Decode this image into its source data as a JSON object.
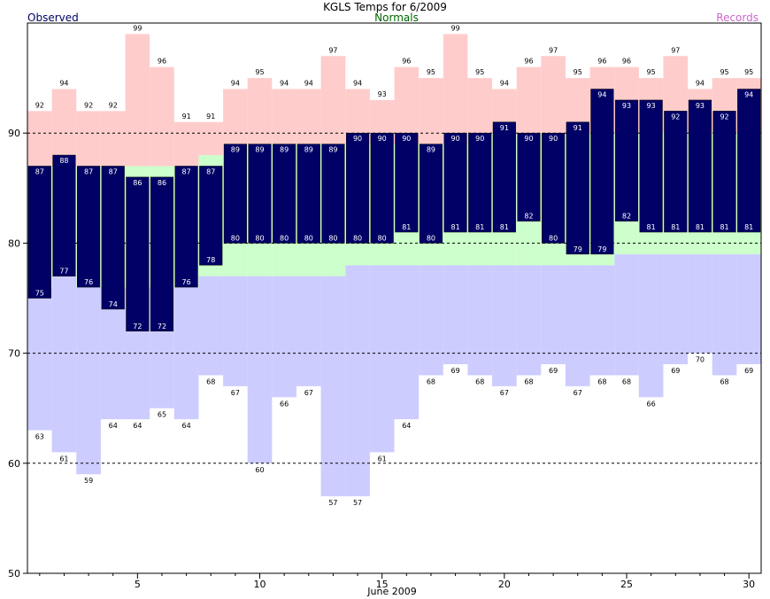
{
  "chart_data": {
    "type": "bar",
    "title": "KGLS Temps for 6/2009",
    "xlabel": "June 2009",
    "ylabel": "",
    "legend": [
      "Observed",
      "Normals",
      "Records"
    ],
    "days": [
      1,
      2,
      3,
      4,
      5,
      6,
      7,
      8,
      9,
      10,
      11,
      12,
      13,
      14,
      15,
      16,
      17,
      18,
      19,
      20,
      21,
      22,
      23,
      24,
      25,
      26,
      27,
      28,
      29,
      30
    ],
    "ylim": [
      50,
      100
    ],
    "xlim": [
      0.5,
      30.5
    ],
    "yticks": [
      50,
      60,
      70,
      80,
      90
    ],
    "xticks": [
      5,
      10,
      15,
      20,
      25,
      30
    ],
    "grid_y": [
      60,
      70,
      80,
      90
    ],
    "colors": {
      "observed": "#000066",
      "normals": "#ccffcc",
      "records": "#ffcccc",
      "record_lows": "#ccccff",
      "legend_observed": "#000066",
      "legend_normals": "#006600",
      "legend_records": "#cc66cc"
    },
    "observed_high": [
      87,
      88,
      87,
      87,
      86,
      86,
      87,
      87,
      89,
      89,
      89,
      89,
      89,
      90,
      90,
      90,
      89,
      90,
      90,
      91,
      90,
      90,
      91,
      94,
      93,
      93,
      92,
      93,
      92,
      94
    ],
    "observed_low": [
      75,
      77,
      76,
      74,
      72,
      72,
      76,
      78,
      80,
      80,
      80,
      80,
      80,
      80,
      80,
      81,
      80,
      81,
      81,
      81,
      82,
      80,
      79,
      79,
      82,
      81,
      81,
      81,
      81,
      81
    ],
    "normal_high": [
      87,
      87,
      87,
      87,
      87,
      87,
      87,
      88,
      89,
      89,
      89,
      89,
      89,
      89,
      89,
      89,
      89,
      89,
      90,
      90,
      90,
      90,
      90,
      90,
      90,
      90,
      90,
      90,
      90,
      90
    ],
    "normal_low": [
      76,
      77,
      76,
      76,
      76,
      76,
      76,
      77,
      77,
      77,
      77,
      77,
      77,
      78,
      78,
      78,
      78,
      78,
      78,
      78,
      78,
      78,
      78,
      78,
      79,
      79,
      79,
      79,
      79,
      79
    ],
    "record_high": [
      92,
      94,
      92,
      92,
      99,
      96,
      91,
      91,
      94,
      95,
      94,
      94,
      97,
      94,
      93,
      96,
      95,
      99,
      95,
      94,
      96,
      97,
      95,
      96,
      96,
      95,
      97,
      94,
      95,
      95
    ],
    "record_low": [
      63,
      61,
      59,
      64,
      64,
      65,
      64,
      68,
      67,
      60,
      66,
      67,
      57,
      57,
      61,
      64,
      68,
      69,
      68,
      67,
      68,
      69,
      67,
      68,
      68,
      66,
      69,
      70,
      68,
      69
    ]
  }
}
